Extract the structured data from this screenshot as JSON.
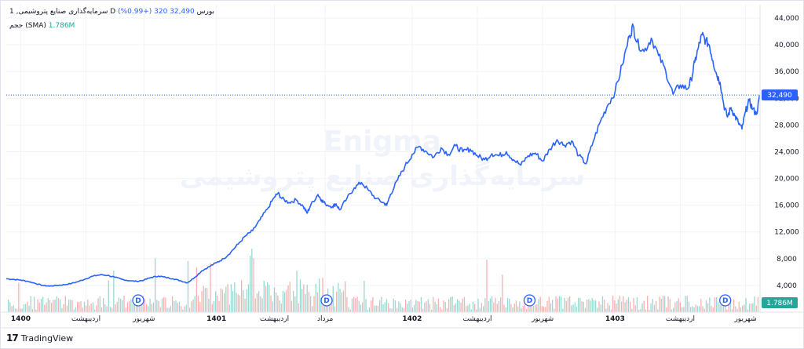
{
  "legend": {
    "symbol": "سرمایه‌گذاری صنایع پتروشیمی",
    "interval": "1",
    "feed": "D",
    "exchange": "بورس",
    "price": "32,490",
    "change": "320 (+0.99%)",
    "volume_name": "حجم (SMA)",
    "volume_value": "1.786M"
  },
  "watermark": {
    "line1": "Enigma",
    "line2": "سرمایه‌گذاری صنایع پتروشیمی"
  },
  "labels": {
    "last_price": "32,490",
    "last_volume": "1.786M",
    "dividend_marker": "D"
  },
  "footer": {
    "logo": "17",
    "brand": "TradingView"
  },
  "colors": {
    "line": "#2962ff",
    "vol_up": "#26a69a",
    "vol_down": "#ef5350",
    "vol_label": "#26a69a",
    "price_label": "#2962ff"
  },
  "chart_data": {
    "type": "line",
    "ylim": [
      0,
      46000
    ],
    "y_ticks": [
      "44,000",
      "40,000",
      "36,000",
      "32,000",
      "28,000",
      "24,000",
      "20,000",
      "16,000",
      "12,000",
      "8,000",
      "4,000"
    ],
    "x_ticks": [
      "1400",
      "اردیبهشت",
      "شهریور",
      "1401",
      "اردیبهشت",
      "مرداد",
      "1402",
      "اردیبهشت",
      "شهریور",
      "1403",
      "اردیبهشت",
      "شهریور"
    ],
    "x_tick_pos": [
      0.02,
      0.11,
      0.19,
      0.29,
      0.37,
      0.44,
      0.56,
      0.65,
      0.74,
      0.84,
      0.93,
      1.02
    ],
    "dividend_pos": [
      0.182,
      0.442,
      0.722,
      0.992
    ],
    "series": [
      {
        "values": [
          [
            0.0,
            5000
          ],
          [
            0.01,
            4900
          ],
          [
            0.02,
            4800
          ],
          [
            0.03,
            4600
          ],
          [
            0.04,
            4300
          ],
          [
            0.05,
            4000
          ],
          [
            0.06,
            3900
          ],
          [
            0.07,
            4000
          ],
          [
            0.08,
            4100
          ],
          [
            0.09,
            4300
          ],
          [
            0.1,
            4600
          ],
          [
            0.11,
            5000
          ],
          [
            0.12,
            5400
          ],
          [
            0.13,
            5600
          ],
          [
            0.14,
            5500
          ],
          [
            0.15,
            5200
          ],
          [
            0.16,
            4900
          ],
          [
            0.17,
            4700
          ],
          [
            0.18,
            4600
          ],
          [
            0.19,
            4800
          ],
          [
            0.2,
            5200
          ],
          [
            0.21,
            5400
          ],
          [
            0.22,
            5200
          ],
          [
            0.23,
            5000
          ],
          [
            0.24,
            4700
          ],
          [
            0.25,
            4400
          ],
          [
            0.26,
            5200
          ],
          [
            0.27,
            6200
          ],
          [
            0.28,
            6800
          ],
          [
            0.29,
            7400
          ],
          [
            0.3,
            8000
          ],
          [
            0.31,
            9000
          ],
          [
            0.32,
            10200
          ],
          [
            0.33,
            11400
          ],
          [
            0.34,
            12200
          ],
          [
            0.35,
            13800
          ],
          [
            0.36,
            15400
          ],
          [
            0.37,
            17200
          ],
          [
            0.375,
            17800
          ],
          [
            0.38,
            17000
          ],
          [
            0.39,
            16400
          ],
          [
            0.4,
            16800
          ],
          [
            0.41,
            15800
          ],
          [
            0.415,
            14800
          ],
          [
            0.42,
            16000
          ],
          [
            0.43,
            17600
          ],
          [
            0.435,
            16800
          ],
          [
            0.44,
            16200
          ],
          [
            0.45,
            15800
          ],
          [
            0.455,
            16200
          ],
          [
            0.46,
            15300
          ],
          [
            0.47,
            17000
          ],
          [
            0.48,
            18600
          ],
          [
            0.49,
            19400
          ],
          [
            0.5,
            18200
          ],
          [
            0.51,
            17000
          ],
          [
            0.52,
            16400
          ],
          [
            0.525,
            16000
          ],
          [
            0.53,
            17600
          ],
          [
            0.54,
            19800
          ],
          [
            0.55,
            21800
          ],
          [
            0.56,
            23600
          ],
          [
            0.57,
            24800
          ],
          [
            0.58,
            24000
          ],
          [
            0.59,
            23200
          ],
          [
            0.6,
            24600
          ],
          [
            0.61,
            23600
          ],
          [
            0.62,
            24900
          ],
          [
            0.63,
            24000
          ],
          [
            0.64,
            24400
          ],
          [
            0.65,
            23400
          ],
          [
            0.66,
            22800
          ],
          [
            0.67,
            23700
          ],
          [
            0.68,
            23400
          ],
          [
            0.69,
            24000
          ],
          [
            0.7,
            22800
          ],
          [
            0.71,
            22000
          ],
          [
            0.72,
            23400
          ],
          [
            0.73,
            23800
          ],
          [
            0.74,
            22600
          ],
          [
            0.75,
            24400
          ],
          [
            0.76,
            25800
          ],
          [
            0.77,
            25000
          ],
          [
            0.78,
            25600
          ],
          [
            0.79,
            23400
          ],
          [
            0.8,
            22200
          ],
          [
            0.81,
            25600
          ],
          [
            0.82,
            28600
          ],
          [
            0.83,
            31000
          ],
          [
            0.84,
            33000
          ],
          [
            0.85,
            37000
          ],
          [
            0.86,
            41400
          ],
          [
            0.865,
            42800
          ],
          [
            0.87,
            40400
          ],
          [
            0.88,
            39000
          ],
          [
            0.89,
            41000
          ],
          [
            0.9,
            38400
          ],
          [
            0.91,
            36000
          ],
          [
            0.92,
            32600
          ],
          [
            0.93,
            34000
          ],
          [
            0.94,
            33400
          ],
          [
            0.945,
            34800
          ],
          [
            0.95,
            37400
          ],
          [
            0.955,
            39600
          ],
          [
            0.96,
            41500
          ],
          [
            0.965,
            40600
          ],
          [
            0.97,
            40000
          ],
          [
            0.975,
            37600
          ],
          [
            0.98,
            35600
          ],
          [
            0.985,
            34400
          ],
          [
            0.99,
            31000
          ],
          [
            0.995,
            29200
          ],
          [
            1.0,
            30600
          ],
          [
            1.005,
            29400
          ],
          [
            1.01,
            28400
          ],
          [
            1.015,
            27400
          ],
          [
            1.02,
            30000
          ],
          [
            1.025,
            31600
          ],
          [
            1.03,
            30400
          ],
          [
            1.035,
            29600
          ],
          [
            1.04,
            32490
          ]
        ]
      }
    ]
  }
}
